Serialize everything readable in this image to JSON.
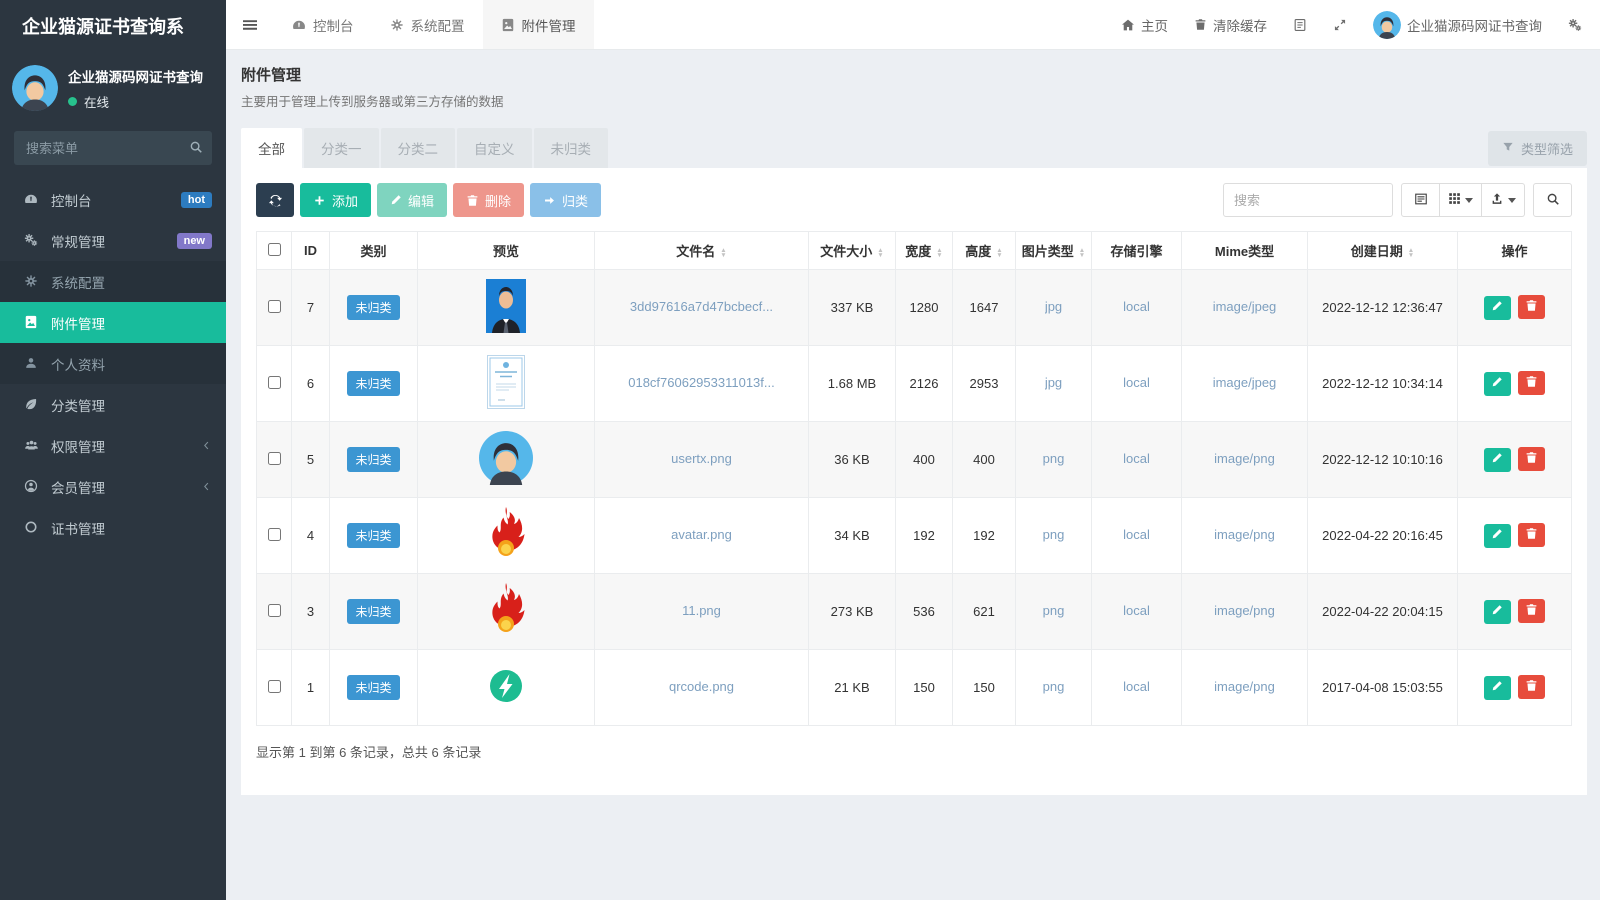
{
  "sidebar": {
    "logo": "企业猫源证书查询系",
    "user": {
      "name": "企业猫源码网证书查询",
      "status": "在线"
    },
    "search_placeholder": "搜索菜单",
    "items": [
      {
        "icon": "gauge-icon",
        "label": "控制台",
        "type": "top",
        "badge": "hot"
      },
      {
        "icon": "cogs-icon",
        "label": "常规管理",
        "type": "top",
        "badge": "new"
      },
      {
        "icon": "gear-icon",
        "label": "系统配置",
        "type": "sub"
      },
      {
        "icon": "file-image-icon",
        "label": "附件管理",
        "type": "sub",
        "active": true
      },
      {
        "icon": "user-icon",
        "label": "个人资料",
        "type": "sub"
      },
      {
        "icon": "leaf-icon",
        "label": "分类管理",
        "type": "top"
      },
      {
        "icon": "users-icon",
        "label": "权限管理",
        "type": "top",
        "chevron": true
      },
      {
        "icon": "member-icon",
        "label": "会员管理",
        "type": "top",
        "chevron": true
      },
      {
        "icon": "circle-icon",
        "label": "证书管理",
        "type": "top"
      }
    ]
  },
  "navbar": {
    "tabs": [
      {
        "icon": "gauge-icon",
        "label": "控制台"
      },
      {
        "icon": "gear-icon",
        "label": "系统配置"
      },
      {
        "icon": "file-image-icon",
        "label": "附件管理",
        "active": true
      }
    ],
    "right": {
      "home": "主页",
      "clear_cache": "清除缓存",
      "username": "企业猫源码网证书查询"
    }
  },
  "page": {
    "title": "附件管理",
    "subtitle": "主要用于管理上传到服务器或第三方存储的数据",
    "tabs": [
      "全部",
      "分类一",
      "分类二",
      "自定义",
      "未归类"
    ],
    "active_tab": "全部",
    "filter_button": "类型筛选"
  },
  "toolbar": {
    "add": "添加",
    "edit": "编辑",
    "delete": "删除",
    "classify": "归类",
    "search_placeholder": "搜索"
  },
  "table": {
    "columns": [
      {
        "key": "check",
        "label": ""
      },
      {
        "key": "id",
        "label": "ID"
      },
      {
        "key": "category",
        "label": "类别"
      },
      {
        "key": "preview",
        "label": "预览"
      },
      {
        "key": "filename",
        "label": "文件名",
        "sortable": true
      },
      {
        "key": "size",
        "label": "文件大小",
        "sortable": true
      },
      {
        "key": "width",
        "label": "宽度",
        "sortable": true
      },
      {
        "key": "height",
        "label": "高度",
        "sortable": true
      },
      {
        "key": "imgtype",
        "label": "图片类型",
        "sortable": true
      },
      {
        "key": "engine",
        "label": "存储引擎"
      },
      {
        "key": "mime",
        "label": "Mime类型"
      },
      {
        "key": "created",
        "label": "创建日期",
        "sortable": true
      },
      {
        "key": "ops",
        "label": "操作"
      }
    ],
    "rows": [
      {
        "id": "7",
        "category": "未归类",
        "preview": "portrait",
        "filename": "3dd97616a7d47bcbecf...",
        "size": "337 KB",
        "width": "1280",
        "height": "1647",
        "imgtype": "jpg",
        "engine": "local",
        "mime": "image/jpeg",
        "created": "2022-12-12 12:36:47"
      },
      {
        "id": "6",
        "category": "未归类",
        "preview": "certificate",
        "filename": "018cf76062953311013f...",
        "size": "1.68 MB",
        "width": "2126",
        "height": "2953",
        "imgtype": "jpg",
        "engine": "local",
        "mime": "image/jpeg",
        "created": "2022-12-12 10:34:14"
      },
      {
        "id": "5",
        "category": "未归类",
        "preview": "avatar",
        "filename": "usertx.png",
        "size": "36 KB",
        "width": "400",
        "height": "400",
        "imgtype": "png",
        "engine": "local",
        "mime": "image/png",
        "created": "2022-12-12 10:10:16"
      },
      {
        "id": "4",
        "category": "未归类",
        "preview": "flame",
        "filename": "avatar.png",
        "size": "34 KB",
        "width": "192",
        "height": "192",
        "imgtype": "png",
        "engine": "local",
        "mime": "image/png",
        "created": "2022-04-22 20:16:45"
      },
      {
        "id": "3",
        "category": "未归类",
        "preview": "flame",
        "filename": "11.png",
        "size": "273 KB",
        "width": "536",
        "height": "621",
        "imgtype": "png",
        "engine": "local",
        "mime": "image/png",
        "created": "2022-04-22 20:04:15"
      },
      {
        "id": "1",
        "category": "未归类",
        "preview": "boltpin",
        "filename": "qrcode.png",
        "size": "21 KB",
        "width": "150",
        "height": "150",
        "imgtype": "png",
        "engine": "local",
        "mime": "image/png",
        "created": "2017-04-08 15:03:55"
      }
    ],
    "footer": "显示第 1 到第 6 条记录，总共 6 条记录"
  },
  "colors": {
    "accent_green": "#18bc9c",
    "sidebar_bg": "#2c3640",
    "badge_hot": "#2d7cc0",
    "badge_new": "#8278c9",
    "category_badge": "#3c96d2",
    "link": "#7d9fbf",
    "edit_button": "#18bc9c",
    "delete_button": "#e74c3c",
    "refresh_button": "#2c3e50"
  }
}
